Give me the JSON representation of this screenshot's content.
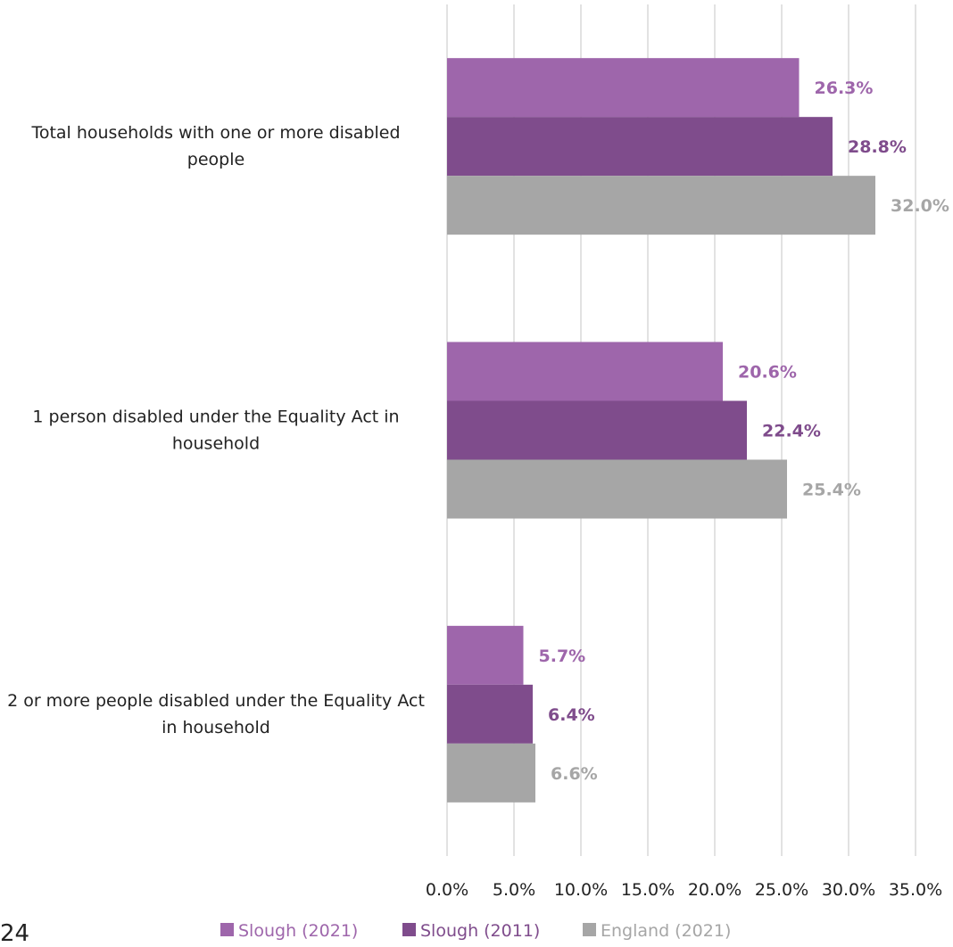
{
  "page_number": "24",
  "chart_data": {
    "type": "bar",
    "orientation": "horizontal",
    "categories": [
      "Total households with one or more disabled people",
      "1 person disabled under the Equality Act in household",
      "2 or more people disabled under the Equality Act in household"
    ],
    "series": [
      {
        "name": "Slough (2021)",
        "color": "#9e66ab",
        "values": [
          26.3,
          20.6,
          5.7
        ],
        "labels": [
          "26.3%",
          "20.6%",
          "5.7%"
        ]
      },
      {
        "name": "Slough (2011)",
        "color": "#7f4c8c",
        "values": [
          28.8,
          22.4,
          6.4
        ],
        "labels": [
          "28.8%",
          "22.4%",
          "6.4%"
        ]
      },
      {
        "name": "England (2021)",
        "color": "#a6a6a6",
        "values": [
          32.0,
          25.4,
          6.6
        ],
        "labels": [
          "32.0%",
          "25.4%",
          "6.6%"
        ]
      }
    ],
    "xlim": [
      0,
      35
    ],
    "x_ticks": [
      "0.0%",
      "5.0%",
      "10.0%",
      "15.0%",
      "20.0%",
      "25.0%",
      "30.0%",
      "35.0%"
    ],
    "grid": true,
    "legend_position": "bottom"
  }
}
